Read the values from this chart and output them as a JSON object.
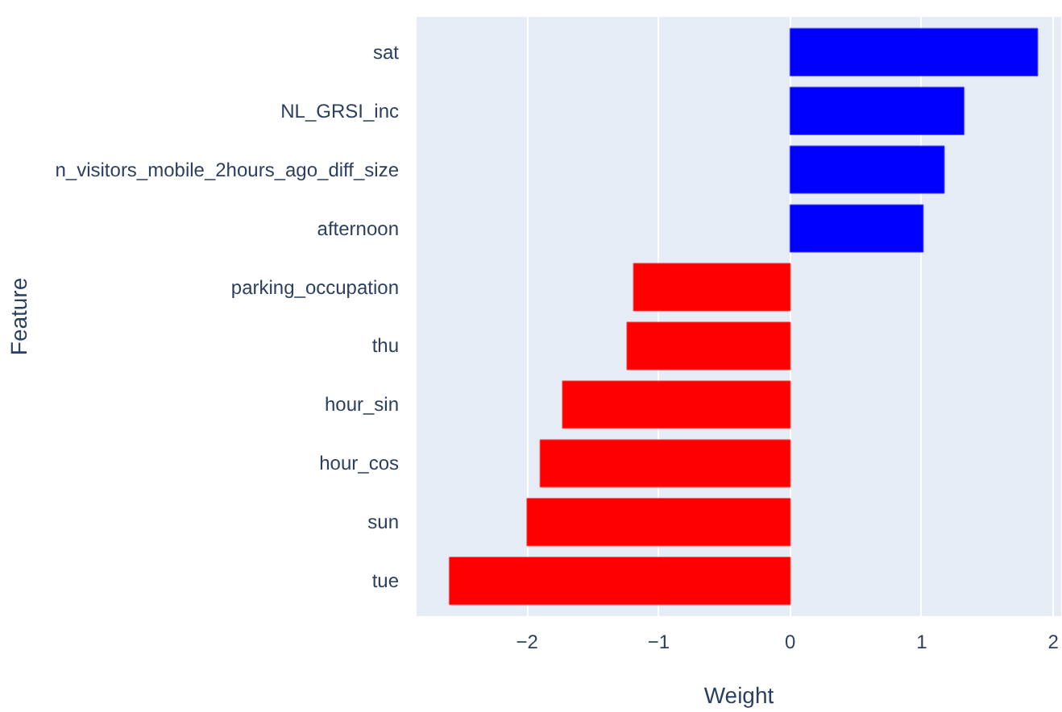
{
  "chart_data": {
    "type": "bar",
    "orientation": "horizontal",
    "xlabel": "Weight",
    "ylabel": "Feature",
    "categories": [
      "sat",
      "NL_GRSI_inc",
      "n_visitors_mobile_2hours_ago_diff_size",
      "afternoon",
      "parking_occupation",
      "thu",
      "hour_sin",
      "hour_cos",
      "sun",
      "tue"
    ],
    "values": [
      1.88,
      1.32,
      1.17,
      1.01,
      -1.19,
      -1.24,
      -1.73,
      -1.9,
      -2.0,
      -2.59
    ],
    "colors": [
      "#0000ff",
      "#0000ff",
      "#0000ff",
      "#0000ff",
      "#ff0000",
      "#ff0000",
      "#ff0000",
      "#ff0000",
      "#ff0000",
      "#ff0000"
    ],
    "xlim": [
      -2.84,
      2.06
    ],
    "xticks": [
      {
        "value": -2,
        "label": "−2"
      },
      {
        "value": -1,
        "label": "−1"
      },
      0,
      1,
      2
    ],
    "grid": "x"
  }
}
